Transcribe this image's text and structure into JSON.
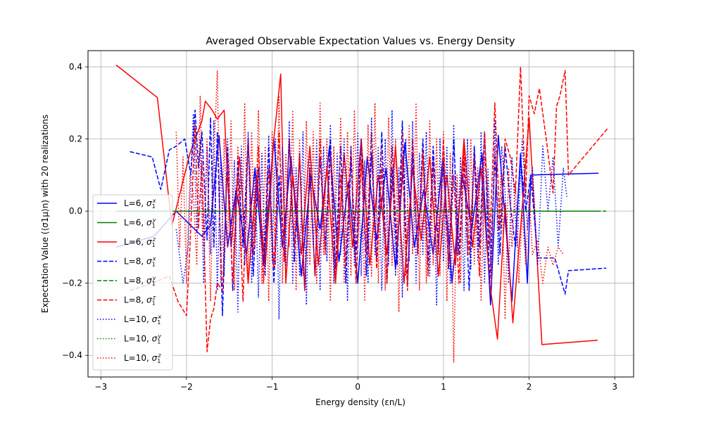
{
  "chart_data": {
    "type": "line",
    "title": "Averaged Observable Expectation Values vs. Energy Density",
    "xlabel": "Energy density (εn/L)",
    "ylabel": "Expectation Value (⟨σ1μ⟩n) with 20 realizations",
    "xlim": [
      -3.15,
      3.22
    ],
    "ylim": [
      -0.46,
      0.445
    ],
    "xticks": [
      -3,
      -2,
      -1,
      0,
      1,
      2,
      3
    ],
    "yticks": [
      -0.4,
      -0.2,
      0.0,
      0.2,
      0.4
    ],
    "xtick_labels": [
      "−3",
      "−2",
      "−1",
      "0",
      "1",
      "2",
      "3"
    ],
    "ytick_labels": [
      "−0.4",
      "−0.2",
      "0.0",
      "0.2",
      "0.4"
    ],
    "grid": true,
    "legend_position": "center-left",
    "series": [
      {
        "name": "L=6, σ1x",
        "color": "#0000ff",
        "style": "solid",
        "L": "6",
        "op": "x",
        "x": [
          -2.82,
          -2.38,
          -2.12,
          -1.82,
          -1.72,
          -1.62,
          -1.52,
          -1.42,
          -1.3,
          -1.2,
          -1.1,
          -0.98,
          -0.88,
          -0.78,
          -0.66,
          -0.55,
          -0.44,
          -0.33,
          -0.22,
          -0.11,
          0.0,
          0.11,
          0.22,
          0.33,
          0.44,
          0.55,
          0.66,
          0.77,
          0.88,
          0.99,
          1.1,
          1.22,
          1.33,
          1.45,
          1.55,
          1.64,
          1.72,
          1.8,
          1.9,
          1.98,
          2.02,
          2.81
        ],
        "y": [
          -0.1,
          -0.07,
          0.0,
          -0.07,
          -0.04,
          0.21,
          -0.1,
          0.06,
          -0.12,
          0.12,
          -0.15,
          0.2,
          -0.1,
          0.15,
          -0.18,
          0.1,
          -0.05,
          0.18,
          -0.14,
          0.08,
          -0.2,
          0.15,
          -0.08,
          0.12,
          -0.16,
          0.19,
          -0.1,
          0.06,
          -0.12,
          0.14,
          -0.2,
          0.1,
          -0.05,
          0.16,
          -0.26,
          0.21,
          -0.02,
          -0.25,
          0.16,
          -0.2,
          0.1,
          0.105
        ]
      },
      {
        "name": "L=6, σ1y",
        "color": "#008000",
        "style": "solid",
        "L": "6",
        "op": "y",
        "x": [
          -2.82,
          2.81
        ],
        "y": [
          0.0,
          0.0
        ]
      },
      {
        "name": "L=6, σ1z",
        "color": "#ff0000",
        "style": "solid",
        "L": "6",
        "op": "z",
        "x": [
          -2.82,
          -2.34,
          -2.17,
          -1.96,
          -1.82,
          -1.78,
          -1.7,
          -1.64,
          -1.56,
          -1.48,
          -1.38,
          -1.28,
          -1.18,
          -1.08,
          -0.98,
          -0.9,
          -0.84,
          -0.76,
          -0.66,
          -0.56,
          -0.46,
          -0.36,
          -0.26,
          -0.16,
          -0.06,
          0.04,
          0.14,
          0.24,
          0.34,
          0.44,
          0.54,
          0.64,
          0.74,
          0.84,
          0.94,
          1.04,
          1.14,
          1.24,
          1.34,
          1.44,
          1.54,
          1.63,
          1.72,
          1.81,
          1.9,
          2.0,
          2.15,
          2.8
        ],
        "y": [
          0.405,
          0.315,
          -0.04,
          0.16,
          0.25,
          0.305,
          0.28,
          0.255,
          0.28,
          -0.1,
          0.15,
          -0.2,
          0.1,
          -0.15,
          0.2,
          0.38,
          -0.2,
          0.1,
          -0.12,
          0.18,
          -0.15,
          0.12,
          -0.2,
          0.16,
          -0.1,
          0.2,
          -0.15,
          0.1,
          -0.12,
          0.18,
          -0.2,
          0.12,
          -0.08,
          0.15,
          -0.18,
          0.1,
          -0.15,
          0.2,
          -0.1,
          0.12,
          -0.2,
          -0.355,
          0.02,
          -0.31,
          -0.05,
          0.26,
          -0.37,
          -0.358
        ]
      },
      {
        "name": "L=8, σ1x",
        "color": "#0000ff",
        "style": "dashed",
        "L": "8",
        "op": "x",
        "x": [
          -2.66,
          -2.4,
          -2.3,
          -2.2,
          -2.12,
          -2.02,
          -1.95,
          -1.9,
          -1.86,
          -1.82,
          -1.76,
          -1.72,
          -1.68,
          -1.64,
          -1.58,
          -1.52,
          -1.46,
          -1.4,
          -1.34,
          -1.28,
          -1.22,
          -1.16,
          -1.1,
          -1.04,
          -0.98,
          -0.92,
          -0.86,
          -0.8,
          -0.74,
          -0.68,
          -0.62,
          -0.56,
          -0.5,
          -0.44,
          -0.38,
          -0.32,
          -0.26,
          -0.2,
          -0.14,
          -0.08,
          -0.02,
          0.04,
          0.1,
          0.16,
          0.22,
          0.28,
          0.34,
          0.4,
          0.46,
          0.52,
          0.58,
          0.64,
          0.7,
          0.76,
          0.82,
          0.88,
          0.94,
          1.0,
          1.06,
          1.12,
          1.18,
          1.24,
          1.3,
          1.36,
          1.42,
          1.48,
          1.54,
          1.6,
          1.66,
          1.72,
          1.78,
          1.84,
          1.9,
          1.96,
          2.02,
          2.1,
          2.2,
          2.3,
          2.36,
          2.42,
          2.46,
          2.9
        ],
        "y": [
          0.165,
          0.15,
          0.06,
          0.17,
          0.18,
          0.2,
          0.1,
          0.28,
          0.12,
          0.22,
          -0.08,
          0.26,
          -0.1,
          0.22,
          -0.29,
          0.18,
          -0.22,
          0.15,
          -0.1,
          0.2,
          -0.18,
          0.12,
          -0.15,
          0.18,
          -0.2,
          0.1,
          -0.12,
          0.2,
          -0.14,
          0.16,
          -0.22,
          0.12,
          -0.18,
          0.15,
          -0.1,
          0.2,
          -0.16,
          0.18,
          -0.2,
          0.14,
          -0.12,
          0.2,
          -0.18,
          0.16,
          -0.14,
          0.22,
          -0.2,
          0.12,
          -0.15,
          0.25,
          -0.2,
          0.16,
          -0.12,
          0.2,
          -0.15,
          0.18,
          -0.1,
          0.15,
          -0.16,
          0.2,
          -0.12,
          0.14,
          -0.22,
          0.18,
          -0.1,
          0.22,
          -0.2,
          0.15,
          -0.12,
          0.18,
          0.02,
          -0.1,
          0.15,
          0.0,
          0.1,
          -0.13,
          -0.13,
          -0.13,
          -0.18,
          -0.23,
          -0.165,
          -0.158
        ]
      },
      {
        "name": "L=8, σ1y",
        "color": "#008000",
        "style": "dashed",
        "L": "8",
        "op": "y",
        "x": [
          -2.66,
          2.9
        ],
        "y": [
          0.0,
          0.0
        ]
      },
      {
        "name": "L=8, σ1z",
        "color": "#ff0000",
        "style": "dashed",
        "L": "8",
        "op": "z",
        "x": [
          -2.66,
          -2.4,
          -2.2,
          -2.1,
          -2.0,
          -1.96,
          -1.9,
          -1.86,
          -1.82,
          -1.76,
          -1.72,
          -1.68,
          -1.64,
          -1.58,
          -1.52,
          -1.46,
          -1.4,
          -1.34,
          -1.28,
          -1.22,
          -1.16,
          -1.1,
          -1.04,
          -0.98,
          -0.92,
          -0.86,
          -0.8,
          -0.74,
          -0.68,
          -0.62,
          -0.56,
          -0.5,
          -0.44,
          -0.38,
          -0.32,
          -0.26,
          -0.2,
          -0.14,
          -0.08,
          -0.02,
          0.04,
          0.1,
          0.16,
          0.22,
          0.28,
          0.34,
          0.4,
          0.46,
          0.52,
          0.58,
          0.64,
          0.7,
          0.76,
          0.82,
          0.88,
          0.94,
          1.0,
          1.06,
          1.12,
          1.18,
          1.24,
          1.3,
          1.36,
          1.42,
          1.48,
          1.54,
          1.6,
          1.66,
          1.72,
          1.78,
          1.84,
          1.9,
          1.96,
          2.0,
          2.06,
          2.12,
          2.2,
          2.28,
          2.32,
          2.36,
          2.42,
          2.46,
          2.92
        ],
        "y": [
          -0.22,
          -0.2,
          -0.18,
          -0.25,
          -0.29,
          -0.1,
          0.24,
          -0.05,
          0.14,
          -0.39,
          -0.3,
          -0.27,
          -0.2,
          -0.22,
          0.15,
          -0.2,
          0.1,
          -0.25,
          0.2,
          -0.12,
          0.18,
          -0.2,
          0.12,
          -0.16,
          0.22,
          -0.14,
          0.2,
          -0.1,
          0.15,
          -0.22,
          0.12,
          -0.18,
          0.2,
          -0.12,
          0.16,
          -0.2,
          0.1,
          -0.15,
          0.18,
          -0.2,
          0.14,
          -0.12,
          0.22,
          -0.16,
          0.12,
          -0.2,
          0.18,
          -0.1,
          0.15,
          -0.22,
          0.2,
          -0.12,
          0.16,
          -0.18,
          0.14,
          -0.12,
          0.2,
          -0.15,
          0.1,
          -0.2,
          0.18,
          -0.12,
          0.15,
          -0.18,
          0.22,
          -0.1,
          0.3,
          -0.05,
          0.2,
          0.15,
          0.05,
          0.4,
          0.04,
          0.32,
          0.27,
          0.34,
          0.2,
          0.05,
          0.29,
          0.32,
          0.39,
          0.1,
          0.23
        ]
      },
      {
        "name": "L=10, σ1x",
        "color": "#0000ff",
        "style": "dotted",
        "L": "10",
        "op": "x",
        "x": [
          -2.12,
          -2.04,
          -1.98,
          -1.92,
          -1.88,
          -1.84,
          -1.8,
          -1.76,
          -1.72,
          -1.68,
          -1.64,
          -1.6,
          -1.56,
          -1.52,
          -1.48,
          -1.44,
          -1.4,
          -1.36,
          -1.32,
          -1.28,
          -1.24,
          -1.2,
          -1.16,
          -1.12,
          -1.08,
          -1.04,
          -1.0,
          -0.96,
          -0.92,
          -0.88,
          -0.84,
          -0.8,
          -0.76,
          -0.72,
          -0.68,
          -0.64,
          -0.6,
          -0.56,
          -0.52,
          -0.48,
          -0.44,
          -0.4,
          -0.36,
          -0.32,
          -0.28,
          -0.24,
          -0.2,
          -0.16,
          -0.12,
          -0.08,
          -0.04,
          0.0,
          0.04,
          0.08,
          0.12,
          0.16,
          0.2,
          0.24,
          0.28,
          0.32,
          0.36,
          0.4,
          0.44,
          0.48,
          0.52,
          0.56,
          0.6,
          0.64,
          0.68,
          0.72,
          0.76,
          0.8,
          0.84,
          0.88,
          0.92,
          0.96,
          1.0,
          1.04,
          1.08,
          1.12,
          1.16,
          1.2,
          1.24,
          1.28,
          1.32,
          1.36,
          1.4,
          1.44,
          1.48,
          1.52,
          1.56,
          1.6,
          1.64,
          1.68,
          1.72,
          1.76,
          1.8,
          1.86,
          1.92,
          1.98,
          2.04,
          2.1,
          2.16,
          2.22,
          2.28,
          2.34,
          2.4,
          2.44
        ],
        "y": [
          -0.05,
          -0.2,
          -0.1,
          0.27,
          -0.06,
          0.2,
          -0.2,
          0.18,
          -0.12,
          0.25,
          -0.22,
          0.15,
          -0.18,
          0.2,
          -0.1,
          0.14,
          -0.28,
          0.18,
          -0.15,
          0.22,
          -0.2,
          0.12,
          -0.24,
          0.16,
          -0.18,
          0.21,
          -0.14,
          0.2,
          -0.3,
          0.18,
          -0.15,
          0.25,
          -0.2,
          0.12,
          -0.18,
          0.22,
          -0.26,
          0.15,
          -0.1,
          0.2,
          -0.22,
          0.18,
          -0.14,
          0.24,
          -0.2,
          0.16,
          -0.12,
          0.2,
          -0.25,
          0.18,
          -0.15,
          0.22,
          -0.18,
          0.14,
          -0.2,
          0.26,
          -0.12,
          0.18,
          -0.22,
          0.2,
          -0.15,
          0.28,
          -0.18,
          0.12,
          -0.24,
          0.2,
          -0.14,
          0.25,
          -0.2,
          0.16,
          -0.12,
          0.22,
          -0.18,
          0.15,
          -0.26,
          0.2,
          -0.14,
          0.18,
          -0.2,
          0.24,
          -0.12,
          0.15,
          -0.22,
          0.2,
          -0.16,
          0.18,
          -0.14,
          0.22,
          -0.2,
          0.12,
          -0.18,
          0.25,
          -0.15,
          0.18,
          0.05,
          -0.2,
          0.15,
          -0.1,
          0.2,
          -0.05,
          0.12,
          -0.15,
          0.18,
          0.0,
          0.15,
          -0.1,
          0.12,
          0.04
        ]
      },
      {
        "name": "L=10, σ1y",
        "color": "#008000",
        "style": "dotted",
        "L": "10",
        "op": "y",
        "x": [
          -2.12,
          2.44
        ],
        "y": [
          0.0,
          0.0
        ]
      },
      {
        "name": "L=10, σ1z",
        "color": "#ff0000",
        "style": "dotted",
        "L": "10",
        "op": "z",
        "x": [
          -2.12,
          -2.08,
          -2.04,
          -2.0,
          -1.96,
          -1.92,
          -1.88,
          -1.84,
          -1.8,
          -1.76,
          -1.72,
          -1.68,
          -1.64,
          -1.6,
          -1.56,
          -1.52,
          -1.48,
          -1.44,
          -1.4,
          -1.36,
          -1.32,
          -1.28,
          -1.24,
          -1.2,
          -1.16,
          -1.12,
          -1.08,
          -1.04,
          -1.0,
          -0.96,
          -0.92,
          -0.88,
          -0.84,
          -0.8,
          -0.76,
          -0.72,
          -0.68,
          -0.64,
          -0.6,
          -0.56,
          -0.52,
          -0.48,
          -0.44,
          -0.4,
          -0.36,
          -0.32,
          -0.28,
          -0.24,
          -0.2,
          -0.16,
          -0.12,
          -0.08,
          -0.04,
          0.0,
          0.04,
          0.08,
          0.12,
          0.16,
          0.2,
          0.24,
          0.28,
          0.32,
          0.36,
          0.4,
          0.44,
          0.48,
          0.52,
          0.56,
          0.6,
          0.64,
          0.68,
          0.72,
          0.76,
          0.8,
          0.84,
          0.88,
          0.92,
          0.96,
          1.0,
          1.04,
          1.08,
          1.12,
          1.16,
          1.2,
          1.24,
          1.28,
          1.32,
          1.36,
          1.4,
          1.44,
          1.48,
          1.52,
          1.56,
          1.6,
          1.64,
          1.68,
          1.72,
          1.76,
          1.8,
          1.84,
          1.88,
          1.92,
          1.96,
          2.0,
          2.04,
          2.1,
          2.16,
          2.22,
          2.28,
          2.34,
          2.4
        ],
        "y": [
          0.22,
          -0.1,
          0.15,
          -0.2,
          0.1,
          0.05,
          -0.15,
          0.32,
          -0.1,
          0.2,
          -0.25,
          0.15,
          0.39,
          -0.2,
          0.2,
          -0.1,
          0.25,
          -0.22,
          0.18,
          -0.15,
          0.3,
          -0.2,
          0.22,
          -0.1,
          0.28,
          -0.2,
          0.18,
          -0.25,
          0.22,
          -0.15,
          0.32,
          -0.2,
          0.16,
          -0.1,
          0.28,
          -0.22,
          0.2,
          -0.18,
          0.25,
          -0.15,
          0.22,
          -0.2,
          0.3,
          -0.12,
          0.2,
          -0.25,
          0.18,
          -0.15,
          0.26,
          -0.2,
          0.22,
          -0.18,
          0.28,
          -0.1,
          0.2,
          -0.25,
          0.24,
          -0.18,
          0.3,
          -0.2,
          0.18,
          -0.22,
          0.26,
          -0.15,
          0.2,
          -0.28,
          0.22,
          -0.18,
          0.24,
          -0.12,
          0.3,
          -0.22,
          0.18,
          -0.2,
          0.25,
          -0.15,
          0.2,
          -0.18,
          0.22,
          -0.25,
          0.16,
          -0.42,
          0.1,
          -0.2,
          0.18,
          -0.12,
          0.2,
          -0.15,
          0.12,
          -0.25,
          0.15,
          0.05,
          -0.2,
          0.18,
          -0.05,
          0.1,
          -0.3,
          0.12,
          -0.1,
          0.08,
          -0.2,
          0.0,
          -0.15,
          0.05,
          -0.12,
          -0.08,
          -0.2,
          -0.1,
          -0.15,
          -0.1,
          -0.12
        ]
      }
    ]
  }
}
